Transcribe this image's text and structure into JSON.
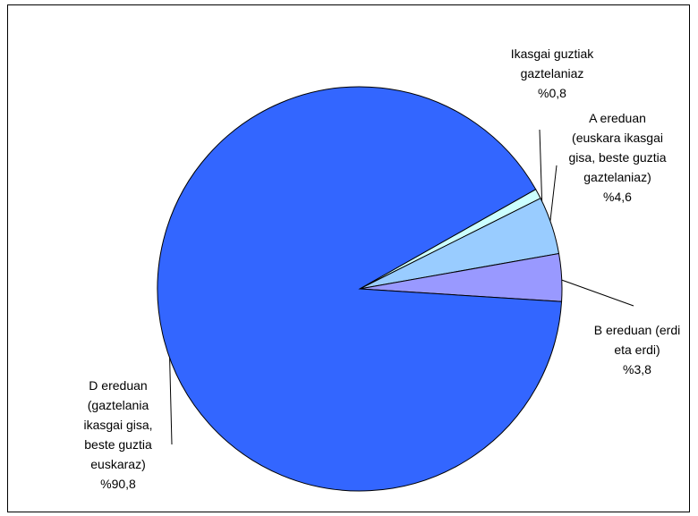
{
  "chart_data": {
    "type": "pie",
    "title": "",
    "slices": [
      {
        "label_lines": [
          "Ikasgai guztiak",
          "gaztelaniaz",
          "%0,8"
        ],
        "value": 0.8,
        "color": "#CCFFFF"
      },
      {
        "label_lines": [
          "A ereduan",
          "(euskara ikasgai",
          "gisa, beste guztia",
          "gaztelaniaz)",
          "%4,6"
        ],
        "value": 4.6,
        "color": "#99CCFF"
      },
      {
        "label_lines": [
          "B ereduan (erdi",
          "eta erdi)",
          "%3,8"
        ],
        "value": 3.8,
        "color": "#9999FF"
      },
      {
        "label_lines": [
          "D ereduan",
          "(gaztelania",
          "ikasgai gisa,",
          "beste guztia",
          "euskaraz)",
          "%90,8"
        ],
        "value": 90.8,
        "color": "#3366FF"
      }
    ],
    "legend": "none"
  }
}
